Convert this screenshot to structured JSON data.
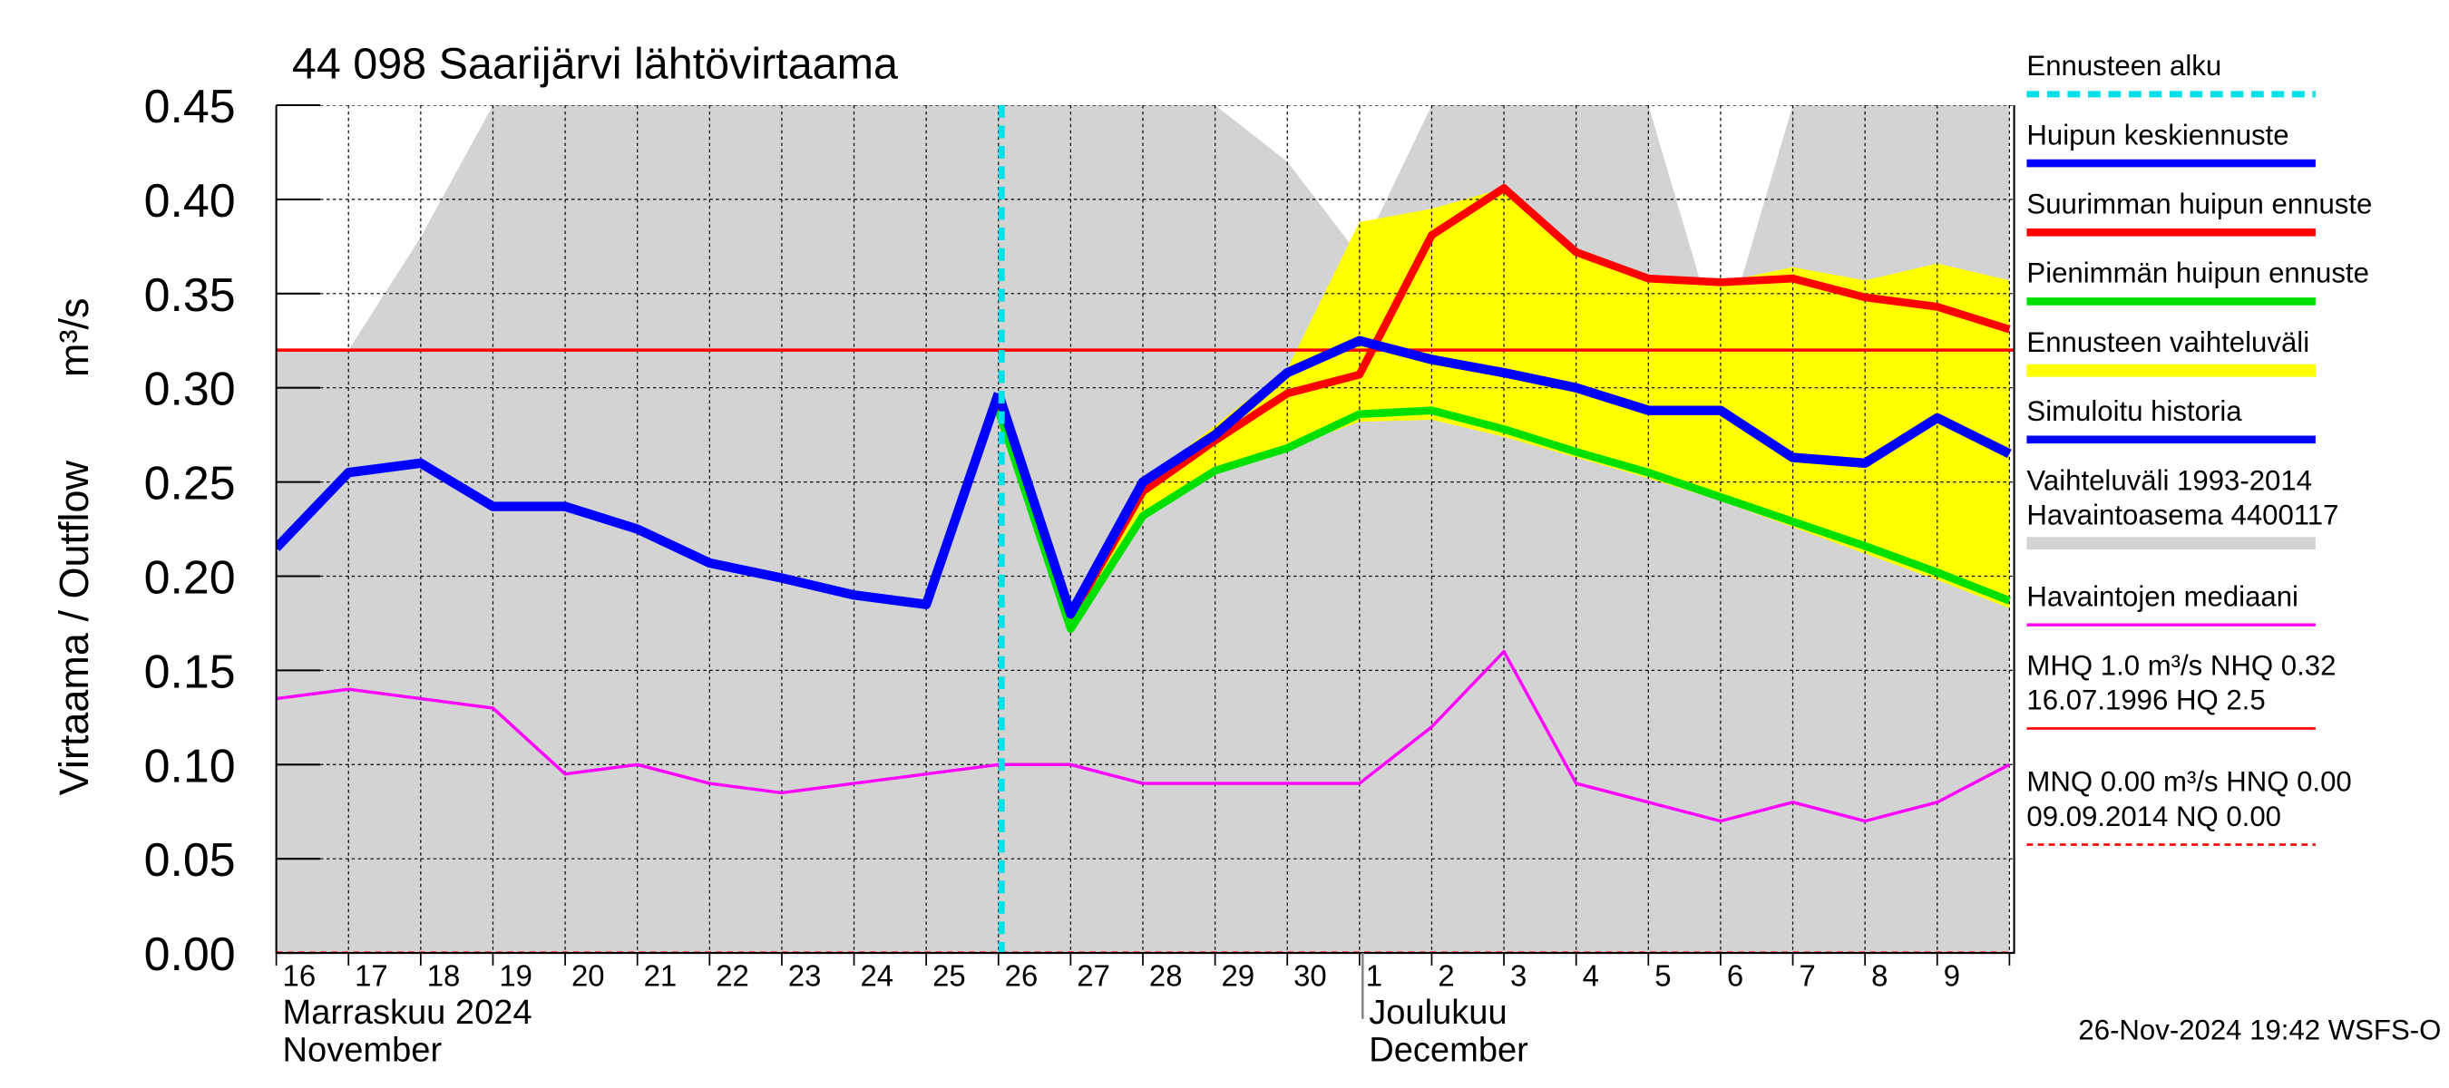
{
  "chart_data": {
    "type": "line",
    "title": "44 098 Saarijärvi lähtövirtaama",
    "y_label": [
      "Virtaama / Outflow",
      "m³/s"
    ],
    "categories": [
      "16",
      "17",
      "18",
      "19",
      "20",
      "21",
      "22",
      "23",
      "24",
      "25",
      "26",
      "27",
      "28",
      "29",
      "30",
      "1",
      "2",
      "3",
      "4",
      "5",
      "6",
      "7",
      "8",
      "9",
      null
    ],
    "months": [
      {
        "labels": [
          "Marraskuu 2024",
          "November"
        ],
        "start": 0
      },
      {
        "labels": [
          "Joulukuu",
          "December"
        ],
        "start": 15
      }
    ],
    "ylim": [
      0,
      0.45
    ],
    "yticks": [
      {
        "value": 0,
        "label": "0.00"
      },
      0.05,
      {
        "value": 0.1,
        "label": "0.10"
      },
      0.15,
      {
        "value": 0.2,
        "label": "0.20"
      },
      0.25,
      {
        "value": 0.3,
        "label": "0.30"
      },
      0.35,
      {
        "value": 0.4,
        "label": "0.40"
      },
      0.45
    ],
    "grid": true,
    "forecast_start": {
      "name": "Ennusteen alku",
      "color": "#00e0e8",
      "index": 10
    },
    "bands": [
      {
        "name": [
          "Vaihteluväli 1993-2014",
          " Havaintoasema 4400117"
        ],
        "color": "#d3d3d3",
        "low": [
          0,
          0,
          0,
          0,
          0,
          0,
          0,
          0,
          0,
          0,
          0,
          0,
          0,
          0,
          0,
          0,
          0,
          0,
          0,
          0,
          0,
          0,
          0,
          0,
          0
        ],
        "high": [
          0.32,
          0.32,
          0.38,
          0.45,
          0.45,
          0.45,
          0.45,
          0.45,
          0.45,
          0.45,
          0.45,
          0.45,
          0.45,
          0.45,
          0.42,
          0.37,
          0.45,
          0.45,
          0.45,
          0.45,
          0.32,
          0.45,
          0.45,
          0.45,
          0.45
        ]
      },
      {
        "name": [
          "Ennusteen vaihteluväli"
        ],
        "color": "#ffff00",
        "low": [
          null,
          null,
          null,
          null,
          null,
          null,
          null,
          null,
          null,
          null,
          0.288,
          0.172,
          0.232,
          0.256,
          0.268,
          0.282,
          0.283,
          0.274,
          0.263,
          0.252,
          0.24,
          0.226,
          0.212,
          0.198,
          0.183
        ],
        "high": [
          null,
          null,
          null,
          null,
          null,
          null,
          null,
          null,
          null,
          null,
          0.29,
          0.178,
          0.25,
          0.28,
          0.31,
          0.388,
          0.395,
          0.406,
          0.372,
          0.358,
          0.356,
          0.364,
          0.357,
          0.366,
          0.357
        ]
      }
    ],
    "series": [
      {
        "name": [
          "Havaintojen mediaani"
        ],
        "color": "#ff00ff",
        "width": 2,
        "values": [
          0.135,
          0.14,
          0.135,
          0.13,
          0.095,
          0.1,
          0.09,
          0.085,
          0.09,
          0.095,
          0.1,
          0.1,
          0.09,
          0.09,
          0.09,
          0.09,
          0.12,
          0.16,
          0.09,
          0.08,
          0.07,
          0.08,
          0.07,
          0.08,
          0.1
        ]
      },
      {
        "name": [
          "Suurimman huipun ennuste"
        ],
        "color": "#ff0000",
        "width": 5,
        "values": [
          null,
          null,
          null,
          null,
          null,
          null,
          null,
          null,
          null,
          null,
          0.29,
          0.178,
          0.245,
          0.272,
          0.297,
          0.307,
          0.381,
          0.406,
          0.372,
          0.358,
          0.356,
          0.358,
          0.348,
          0.343,
          0.331
        ]
      },
      {
        "name": [
          "Pienimmän huipun ennuste"
        ],
        "color": "#00e000",
        "width": 5,
        "values": [
          null,
          null,
          null,
          null,
          null,
          null,
          null,
          null,
          null,
          null,
          0.288,
          0.172,
          0.232,
          0.256,
          0.268,
          0.286,
          0.288,
          0.278,
          0.266,
          0.255,
          0.242,
          0.229,
          0.216,
          0.202,
          0.187
        ]
      },
      {
        "name": [
          "Simuloitu historia"
        ],
        "color": "#0000ff",
        "width": 6,
        "values": [
          0.215,
          0.255,
          0.26,
          0.237,
          0.237,
          0.225,
          0.207,
          0.199,
          0.19,
          0.185,
          0.297,
          null,
          null,
          null,
          null,
          null,
          null,
          null,
          null,
          null,
          null,
          null,
          null,
          null,
          null
        ]
      },
      {
        "name": [
          "Huipun keskiennuste"
        ],
        "color": "#0000ff",
        "width": 6,
        "values": [
          null,
          null,
          null,
          null,
          null,
          null,
          null,
          null,
          null,
          null,
          0.297,
          0.18,
          0.25,
          0.275,
          0.308,
          0.325,
          0.315,
          0.308,
          0.3,
          0.288,
          0.288,
          0.263,
          0.26,
          0.284,
          0.265
        ]
      }
    ],
    "ref_lines": [
      {
        "name": [
          "MHQ  1.0 m³/s NHQ 0.32",
          "16.07.1996 HQ  2.5"
        ],
        "color": "#ff0000",
        "value": 0.32,
        "dashed": false
      },
      {
        "name": [
          "MNQ 0.00 m³/s HNQ 0.00",
          "09.09.2014 NQ 0.00"
        ],
        "color": "#ff0000",
        "value": 0,
        "dashed": true
      }
    ],
    "footer": "26-Nov-2024 19:42 WSFS-O"
  }
}
